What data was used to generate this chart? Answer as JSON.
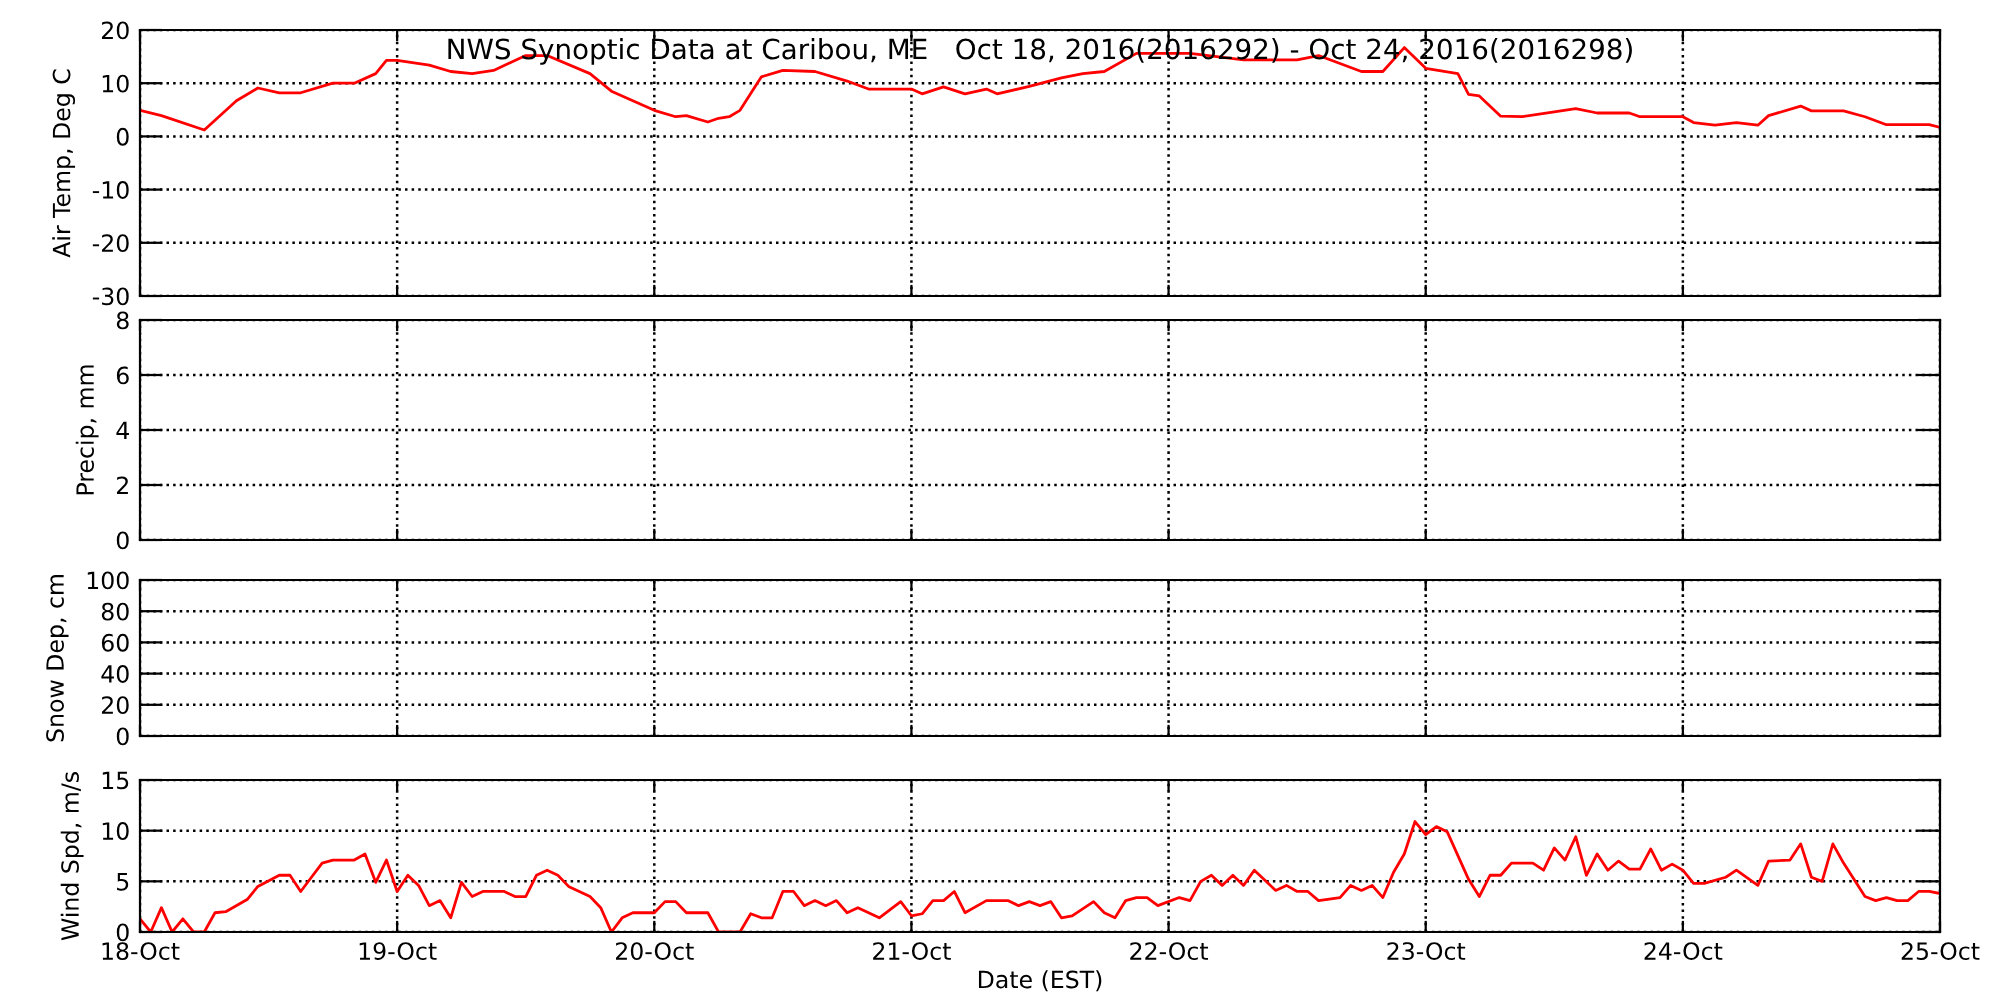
{
  "chart_data": [
    {
      "type": "line",
      "title": "NWS Synoptic Data at Caribou, ME   Oct 18, 2016(2016292) - Oct 24, 2016(2016298)",
      "ylabel": "Air Temp, Deg C",
      "xlim": [
        "2016-10-18",
        "2016-10-25"
      ],
      "xticks": [
        {
          "value": "2016-10-18",
          "label": null
        },
        {
          "value": "2016-10-19",
          "label": null
        },
        {
          "value": "2016-10-20",
          "label": null
        },
        {
          "value": "2016-10-21",
          "label": null
        },
        {
          "value": "2016-10-22",
          "label": null
        },
        {
          "value": "2016-10-23",
          "label": null
        },
        {
          "value": "2016-10-24",
          "label": null
        },
        {
          "value": "2016-10-25",
          "label": null
        }
      ],
      "ylim": [
        -30,
        20
      ],
      "yticks": [
        -30,
        -20,
        -10,
        0,
        10,
        20
      ],
      "grid": true,
      "tick_labels": "y",
      "series": [
        {
          "color": "#ff0000",
          "x": [
            "2016-10-18T00:00",
            "2016-10-18T02:00",
            "2016-10-18T06:00",
            "2016-10-18T09:00",
            "2016-10-18T11:00",
            "2016-10-18T13:00",
            "2016-10-18T15:00",
            "2016-10-18T18:00",
            "2016-10-18T20:00",
            "2016-10-18T22:00",
            "2016-10-18T23:00",
            "2016-10-19T00:00",
            "2016-10-19T03:00",
            "2016-10-19T05:00",
            "2016-10-19T07:00",
            "2016-10-19T09:00",
            "2016-10-19T12:00",
            "2016-10-19T14:00",
            "2016-10-19T18:00",
            "2016-10-19T20:00",
            "2016-10-20T00:00",
            "2016-10-20T02:00",
            "2016-10-20T03:00",
            "2016-10-20T05:00",
            "2016-10-20T06:00",
            "2016-10-20T07:00",
            "2016-10-20T08:00",
            "2016-10-20T10:00",
            "2016-10-20T12:00",
            "2016-10-20T15:00",
            "2016-10-20T18:00",
            "2016-10-20T20:00",
            "2016-10-21T00:00",
            "2016-10-21T01:00",
            "2016-10-21T03:00",
            "2016-10-21T05:00",
            "2016-10-21T07:00",
            "2016-10-21T08:00",
            "2016-10-21T11:00",
            "2016-10-21T14:00",
            "2016-10-21T16:00",
            "2016-10-21T18:00",
            "2016-10-21T21:00",
            "2016-10-22T02:00",
            "2016-10-22T07:00",
            "2016-10-22T12:00",
            "2016-10-22T14:00",
            "2016-10-22T18:00",
            "2016-10-22T20:00",
            "2016-10-22T22:00",
            "2016-10-23T00:00",
            "2016-10-23T03:00",
            "2016-10-23T04:00",
            "2016-10-23T05:00",
            "2016-10-23T07:00",
            "2016-10-23T09:00",
            "2016-10-23T12:00",
            "2016-10-23T14:00",
            "2016-10-23T16:00",
            "2016-10-23T19:00",
            "2016-10-23T20:00",
            "2016-10-24T00:00",
            "2016-10-24T01:00",
            "2016-10-24T03:00",
            "2016-10-24T05:00",
            "2016-10-24T07:00",
            "2016-10-24T08:00",
            "2016-10-24T11:00",
            "2016-10-24T12:00",
            "2016-10-24T15:00",
            "2016-10-24T17:00",
            "2016-10-24T19:00",
            "2016-10-24T23:00",
            "2016-10-25T00:00"
          ],
          "values": [
            4.9,
            3.9,
            1.2,
            6.7,
            9.1,
            8.2,
            8.2,
            10,
            10,
            11.8,
            14.3,
            14.3,
            13.4,
            12.2,
            11.8,
            12.4,
            15.2,
            15.2,
            11.8,
            8.5,
            4.9,
            3.7,
            3.9,
            2.7,
            3.4,
            3.7,
            4.9,
            11.2,
            12.4,
            12.2,
            10.4,
            8.9,
            8.9,
            8.0,
            9.3,
            8.0,
            8.9,
            8.0,
            9.4,
            11.0,
            11.8,
            12.2,
            15.6,
            15.6,
            14.4,
            14.4,
            15.2,
            12.2,
            12.2,
            16.7,
            12.8,
            11.8,
            7.9,
            7.6,
            3.8,
            3.7,
            4.6,
            5.2,
            4.4,
            4.4,
            3.7,
            3.7,
            2.6,
            2.1,
            2.6,
            2.1,
            3.9,
            5.7,
            4.8,
            4.8,
            3.7,
            2.2,
            2.2,
            1.7
          ]
        }
      ]
    },
    {
      "type": "line",
      "ylabel": "Precip, mm",
      "xlim": [
        "2016-10-18",
        "2016-10-25"
      ],
      "xticks": [
        {
          "value": "2016-10-18",
          "label": null
        },
        {
          "value": "2016-10-19",
          "label": null
        },
        {
          "value": "2016-10-20",
          "label": null
        },
        {
          "value": "2016-10-21",
          "label": null
        },
        {
          "value": "2016-10-22",
          "label": null
        },
        {
          "value": "2016-10-23",
          "label": null
        },
        {
          "value": "2016-10-24",
          "label": null
        },
        {
          "value": "2016-10-25",
          "label": null
        }
      ],
      "ylim": [
        0,
        8
      ],
      "yticks": [
        0,
        2,
        4,
        6,
        8
      ],
      "grid": true,
      "tick_labels": "y"
    },
    {
      "type": "line",
      "ylabel": "Snow Dep, cm",
      "xlim": [
        "2016-10-18",
        "2016-10-25"
      ],
      "xticks": [
        {
          "value": "2016-10-18",
          "label": null
        },
        {
          "value": "2016-10-19",
          "label": null
        },
        {
          "value": "2016-10-20",
          "label": null
        },
        {
          "value": "2016-10-21",
          "label": null
        },
        {
          "value": "2016-10-22",
          "label": null
        },
        {
          "value": "2016-10-23",
          "label": null
        },
        {
          "value": "2016-10-24",
          "label": null
        },
        {
          "value": "2016-10-25",
          "label": null
        }
      ],
      "ylim": [
        0,
        100
      ],
      "yticks": [
        0,
        20,
        40,
        60,
        80,
        100
      ],
      "grid": true,
      "tick_labels": "y"
    },
    {
      "type": "line",
      "ylabel": "Wind Spd, m/s",
      "xlabel": "Date (EST)",
      "xlim": [
        "2016-10-18",
        "2016-10-25"
      ],
      "xticks": [
        {
          "value": "2016-10-18",
          "label": "18-Oct"
        },
        {
          "value": "2016-10-19",
          "label": "19-Oct"
        },
        {
          "value": "2016-10-20",
          "label": "20-Oct"
        },
        {
          "value": "2016-10-21",
          "label": "21-Oct"
        },
        {
          "value": "2016-10-22",
          "label": "22-Oct"
        },
        {
          "value": "2016-10-23",
          "label": "23-Oct"
        },
        {
          "value": "2016-10-24",
          "label": "24-Oct"
        },
        {
          "value": "2016-10-25",
          "label": "25-Oct"
        }
      ],
      "ylim": [
        0,
        15
      ],
      "yticks": [
        0,
        5,
        10,
        15
      ],
      "grid": true,
      "series": [
        {
          "color": "#ff0000",
          "x": [
            "2016-10-18T00:00",
            "2016-10-18T01:00",
            "2016-10-18T02:00",
            "2016-10-18T03:00",
            "2016-10-18T04:00",
            "2016-10-18T05:00",
            "2016-10-18T06:00",
            "2016-10-18T07:00",
            "2016-10-18T08:00",
            "2016-10-18T10:00",
            "2016-10-18T11:00",
            "2016-10-18T13:00",
            "2016-10-18T14:00",
            "2016-10-18T15:00",
            "2016-10-18T16:00",
            "2016-10-18T17:00",
            "2016-10-18T18:00",
            "2016-10-18T20:00",
            "2016-10-18T21:00",
            "2016-10-18T22:00",
            "2016-10-18T23:00",
            "2016-10-19T00:00",
            "2016-10-19T01:00",
            "2016-10-19T02:00",
            "2016-10-19T03:00",
            "2016-10-19T04:00",
            "2016-10-19T05:00",
            "2016-10-19T06:00",
            "2016-10-19T07:00",
            "2016-10-19T08:00",
            "2016-10-19T10:00",
            "2016-10-19T11:00",
            "2016-10-19T12:00",
            "2016-10-19T13:00",
            "2016-10-19T14:00",
            "2016-10-19T15:00",
            "2016-10-19T16:00",
            "2016-10-19T18:00",
            "2016-10-19T19:00",
            "2016-10-19T20:00",
            "2016-10-19T21:00",
            "2016-10-19T22:00",
            "2016-10-20T00:00",
            "2016-10-20T01:00",
            "2016-10-20T02:00",
            "2016-10-20T03:00",
            "2016-10-20T05:00",
            "2016-10-20T06:00",
            "2016-10-20T08:00",
            "2016-10-20T09:00",
            "2016-10-20T10:00",
            "2016-10-20T11:00",
            "2016-10-20T12:00",
            "2016-10-20T13:00",
            "2016-10-20T14:00",
            "2016-10-20T15:00",
            "2016-10-20T16:00",
            "2016-10-20T17:00",
            "2016-10-20T18:00",
            "2016-10-20T19:00",
            "2016-10-20T21:00",
            "2016-10-20T23:00",
            "2016-10-21T00:00",
            "2016-10-21T01:00",
            "2016-10-21T02:00",
            "2016-10-21T03:00",
            "2016-10-21T04:00",
            "2016-10-21T05:00",
            "2016-10-21T07:00",
            "2016-10-21T08:00",
            "2016-10-21T09:00",
            "2016-10-21T10:00",
            "2016-10-21T11:00",
            "2016-10-21T12:00",
            "2016-10-21T13:00",
            "2016-10-21T14:00",
            "2016-10-21T15:00",
            "2016-10-21T17:00",
            "2016-10-21T18:00",
            "2016-10-21T19:00",
            "2016-10-21T20:00",
            "2016-10-21T21:00",
            "2016-10-21T22:00",
            "2016-10-21T23:00",
            "2016-10-22T01:00",
            "2016-10-22T02:00",
            "2016-10-22T03:00",
            "2016-10-22T04:00",
            "2016-10-22T05:00",
            "2016-10-22T06:00",
            "2016-10-22T07:00",
            "2016-10-22T08:00",
            "2016-10-22T10:00",
            "2016-10-22T11:00",
            "2016-10-22T12:00",
            "2016-10-22T13:00",
            "2016-10-22T14:00",
            "2016-10-22T16:00",
            "2016-10-22T17:00",
            "2016-10-22T18:00",
            "2016-10-22T19:00",
            "2016-10-22T20:00",
            "2016-10-22T21:00",
            "2016-10-22T22:00",
            "2016-10-22T23:00",
            "2016-10-23T00:00",
            "2016-10-23T01:00",
            "2016-10-23T02:00",
            "2016-10-23T04:00",
            "2016-10-23T05:00",
            "2016-10-23T06:00",
            "2016-10-23T07:00",
            "2016-10-23T08:00",
            "2016-10-23T10:00",
            "2016-10-23T11:00",
            "2016-10-23T12:00",
            "2016-10-23T13:00",
            "2016-10-23T14:00",
            "2016-10-23T15:00",
            "2016-10-23T16:00",
            "2016-10-23T17:00",
            "2016-10-23T18:00",
            "2016-10-23T19:00",
            "2016-10-23T20:00",
            "2016-10-23T21:00",
            "2016-10-23T22:00",
            "2016-10-23T23:00",
            "2016-10-24T00:00",
            "2016-10-24T01:00",
            "2016-10-24T02:00",
            "2016-10-24T04:00",
            "2016-10-24T05:00",
            "2016-10-24T07:00",
            "2016-10-24T08:00",
            "2016-10-24T10:00",
            "2016-10-24T11:00",
            "2016-10-24T12:00",
            "2016-10-24T13:00",
            "2016-10-24T14:00",
            "2016-10-24T15:00",
            "2016-10-24T17:00",
            "2016-10-24T18:00",
            "2016-10-24T19:00",
            "2016-10-24T20:00",
            "2016-10-24T21:00",
            "2016-10-24T22:00",
            "2016-10-24T23:00",
            "2016-10-25T00:00"
          ],
          "values": [
            1.3,
            0,
            2.4,
            0,
            1.3,
            0,
            0,
            1.9,
            2.0,
            3.2,
            4.5,
            5.6,
            5.6,
            4.0,
            5.4,
            6.8,
            7.1,
            7.1,
            7.7,
            4.9,
            7.1,
            4.0,
            5.6,
            4.6,
            2.6,
            3.1,
            1.4,
            4.9,
            3.5,
            4.0,
            4.0,
            3.5,
            3.5,
            5.6,
            6.1,
            5.6,
            4.5,
            3.5,
            2.4,
            0,
            1.4,
            1.9,
            1.9,
            3.0,
            3.0,
            1.9,
            1.9,
            0,
            0,
            1.8,
            1.4,
            1.4,
            4.0,
            4.0,
            2.6,
            3.1,
            2.6,
            3.1,
            1.9,
            2.4,
            1.4,
            3.0,
            1.6,
            1.8,
            3.1,
            3.1,
            4.0,
            1.9,
            3.1,
            3.1,
            3.1,
            2.6,
            3.0,
            2.6,
            3.0,
            1.4,
            1.6,
            3.0,
            1.9,
            1.4,
            3.1,
            3.4,
            3.4,
            2.6,
            3.4,
            3.1,
            5.0,
            5.6,
            4.6,
            5.6,
            4.6,
            6.1,
            4.1,
            4.6,
            4.0,
            4.0,
            3.1,
            3.4,
            4.6,
            4.1,
            4.6,
            3.4,
            5.9,
            7.7,
            10.9,
            9.6,
            10.4,
            9.9,
            5.2,
            3.5,
            5.6,
            5.6,
            6.8,
            6.8,
            6.1,
            8.3,
            7.1,
            9.4,
            5.6,
            7.7,
            6.1,
            7.0,
            6.2,
            6.2,
            8.2,
            6.1,
            6.7,
            6.1,
            4.8,
            4.8,
            5.4,
            6.1,
            4.6,
            7.0,
            7.1,
            8.7,
            5.4,
            5.0,
            8.7,
            6.8,
            3.5,
            3.1,
            3.4,
            3.1,
            3.1,
            4.0,
            4.0,
            3.8
          ]
        }
      ]
    }
  ]
}
